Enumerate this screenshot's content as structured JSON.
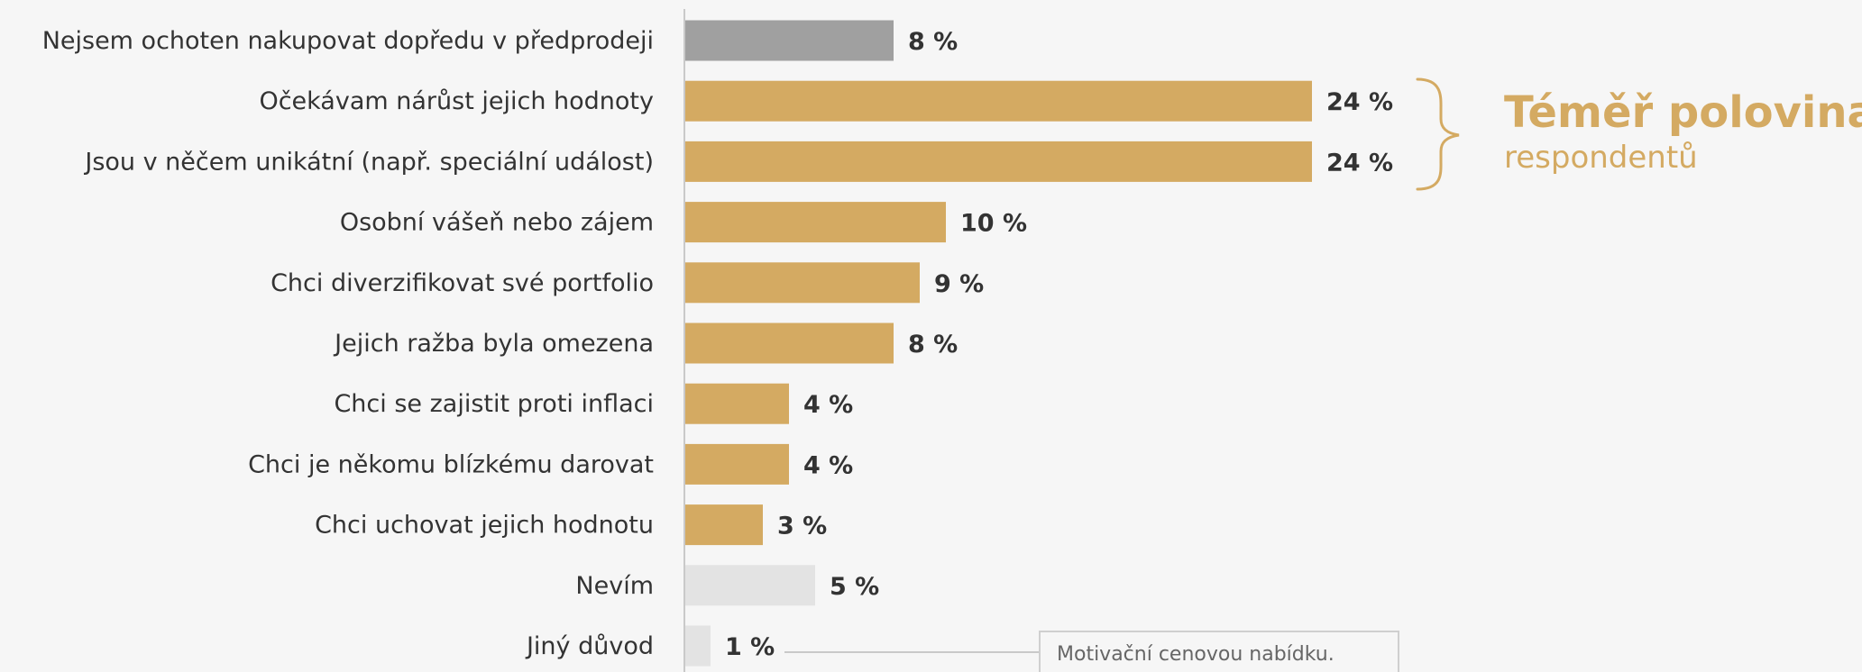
{
  "chart_data": {
    "type": "bar",
    "orientation": "horizontal",
    "categories": [
      "Nejsem ochoten nakupovat dopředu v předprodeji",
      "Očekávam nárůst jejich hodnoty",
      "Jsou v něčem unikátní (např. speciální událost)",
      "Osobní vášeň nebo zájem",
      "Chci diverzifikovat své portfolio",
      "Jejich ražba byla omezena",
      "Chci se zajistit proti inflaci",
      "Chci je někomu blízkému darovat",
      "Chci uchovat jejich hodnotu",
      "Nevím",
      "Jiný důvod"
    ],
    "values": [
      8,
      24,
      24,
      10,
      9,
      8,
      4,
      4,
      3,
      5,
      1
    ],
    "value_labels": [
      "8 %",
      "24 %",
      "24 %",
      "10 %",
      "9 %",
      "8 %",
      "4 %",
      "4 %",
      "3 %",
      "5 %",
      "1 %"
    ],
    "bar_colors": [
      "#a0a0a0",
      "#d4aa62",
      "#d4aa62",
      "#d4aa62",
      "#d4aa62",
      "#d4aa62",
      "#d4aa62",
      "#d4aa62",
      "#d4aa62",
      "#e3e3e3",
      "#e3e3e3"
    ],
    "xlim": [
      0,
      24
    ],
    "grid": false,
    "legend": "none",
    "annotation": {
      "bold": "Téměř polovina",
      "light": "respondentů",
      "color": "#d4aa62"
    },
    "callout": {
      "text": "Motivační cenovou nabídku."
    }
  }
}
